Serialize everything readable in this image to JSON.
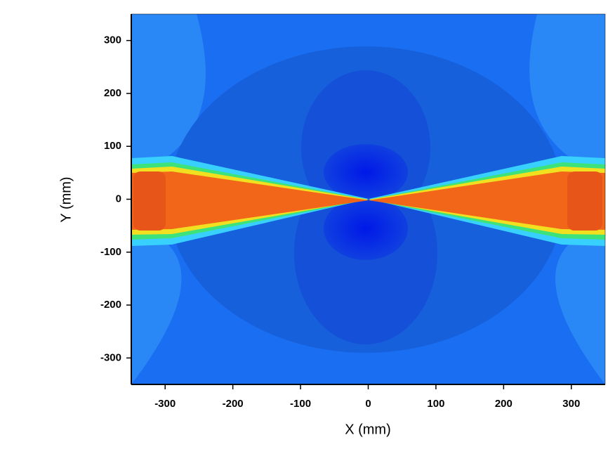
{
  "chart_data": {
    "type": "contour",
    "xlabel": "X (mm)",
    "ylabel": "Y (mm)",
    "xlim": [
      -350,
      350
    ],
    "ylim": [
      -350,
      350
    ],
    "xticks": [
      -300,
      -200,
      -100,
      0,
      100,
      200,
      300
    ],
    "yticks": [
      -300,
      -200,
      -100,
      0,
      100,
      200,
      300
    ]
  }
}
